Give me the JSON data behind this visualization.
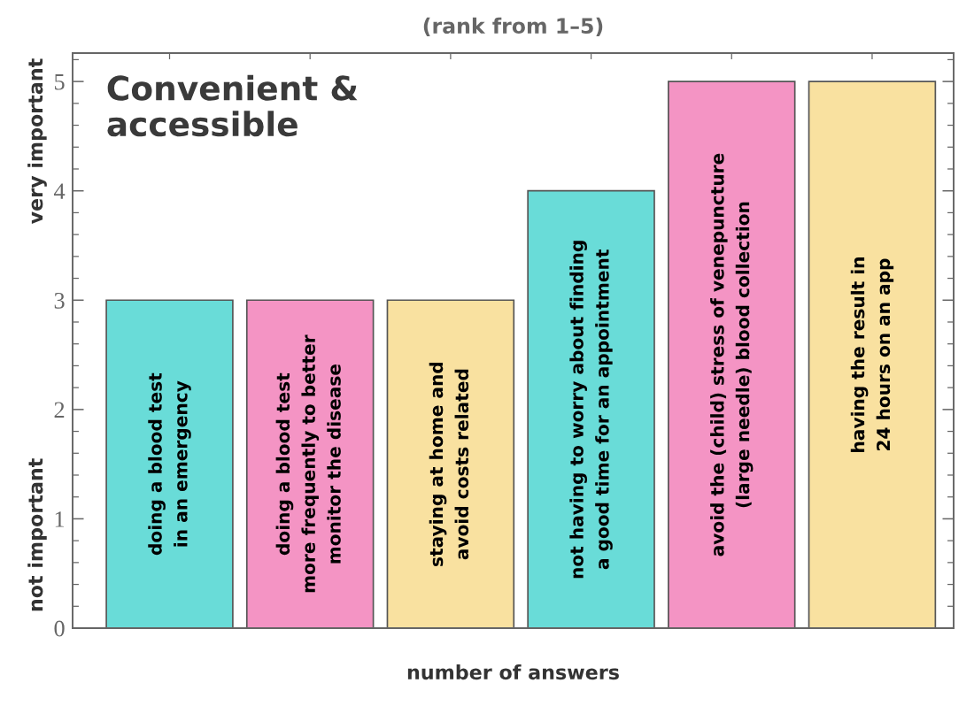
{
  "chart_data": {
    "type": "bar",
    "title": "(rank from 1–5)",
    "subtitle": "Convenient &\naccessible",
    "xlabel": "number of answers",
    "annotations": [
      "very important",
      "not important"
    ],
    "categories": [
      "doing a blood test\nin an emergency",
      "doing a blood test\nmore frequently to better\nmonitor the disease",
      "staying at home and\navoid costs related",
      "not having to worry about finding\na good time for an appointment",
      "avoid the (child) stress of venepuncture\n(large needle) blood collection",
      "having the result in\n24 hours on an app"
    ],
    "values": [
      3,
      3,
      3,
      4,
      5,
      5
    ],
    "colors": [
      "#69dcd8",
      "#f494c4",
      "#f9e1a0",
      "#69dcd8",
      "#f494c4",
      "#f9e1a0"
    ],
    "ylim": [
      0,
      5.26
    ],
    "yticks": [
      0,
      1,
      2,
      3,
      4,
      5
    ],
    "grid": false
  }
}
